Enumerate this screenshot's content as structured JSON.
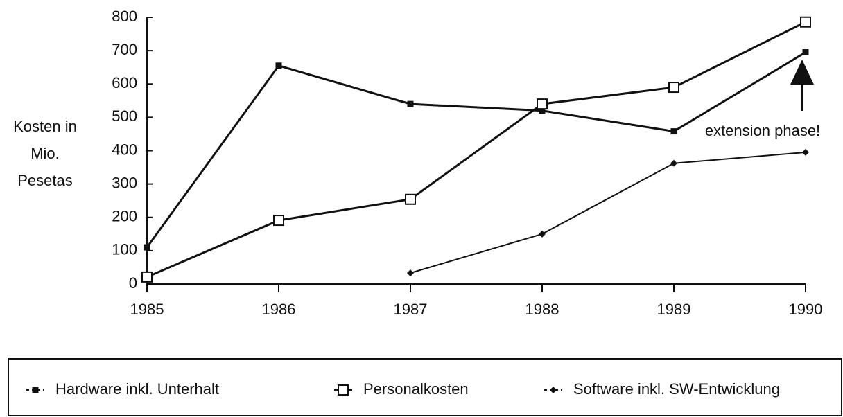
{
  "chart_data": {
    "type": "line",
    "ylabel": [
      "Kosten in",
      "Mio.",
      "Pesetas"
    ],
    "x": [
      1985,
      1986,
      1987,
      1988,
      1989,
      1990
    ],
    "xlim": [
      1985,
      1990
    ],
    "xticks": [
      1985,
      1986,
      1987,
      1988,
      1989,
      1990
    ],
    "ylim": [
      0,
      800
    ],
    "yticks": [
      0,
      100,
      200,
      300,
      400,
      500,
      600,
      700,
      800
    ],
    "series": [
      {
        "name": "Hardware inkl. Unterhalt",
        "color": "#111111",
        "marker": "square",
        "values": [
          110,
          655,
          540,
          520,
          458,
          695
        ]
      },
      {
        "name": "Personalkosten",
        "color": "#111111",
        "marker": "open-square",
        "values": [
          21,
          191,
          254,
          540,
          590,
          786
        ]
      },
      {
        "name": "Software inkl. SW-Entwicklung",
        "color": "#111111",
        "marker": "diamond",
        "values": [
          null,
          null,
          33,
          150,
          362,
          395
        ]
      }
    ],
    "annotation": "extension phase!",
    "legend": "bottom"
  }
}
